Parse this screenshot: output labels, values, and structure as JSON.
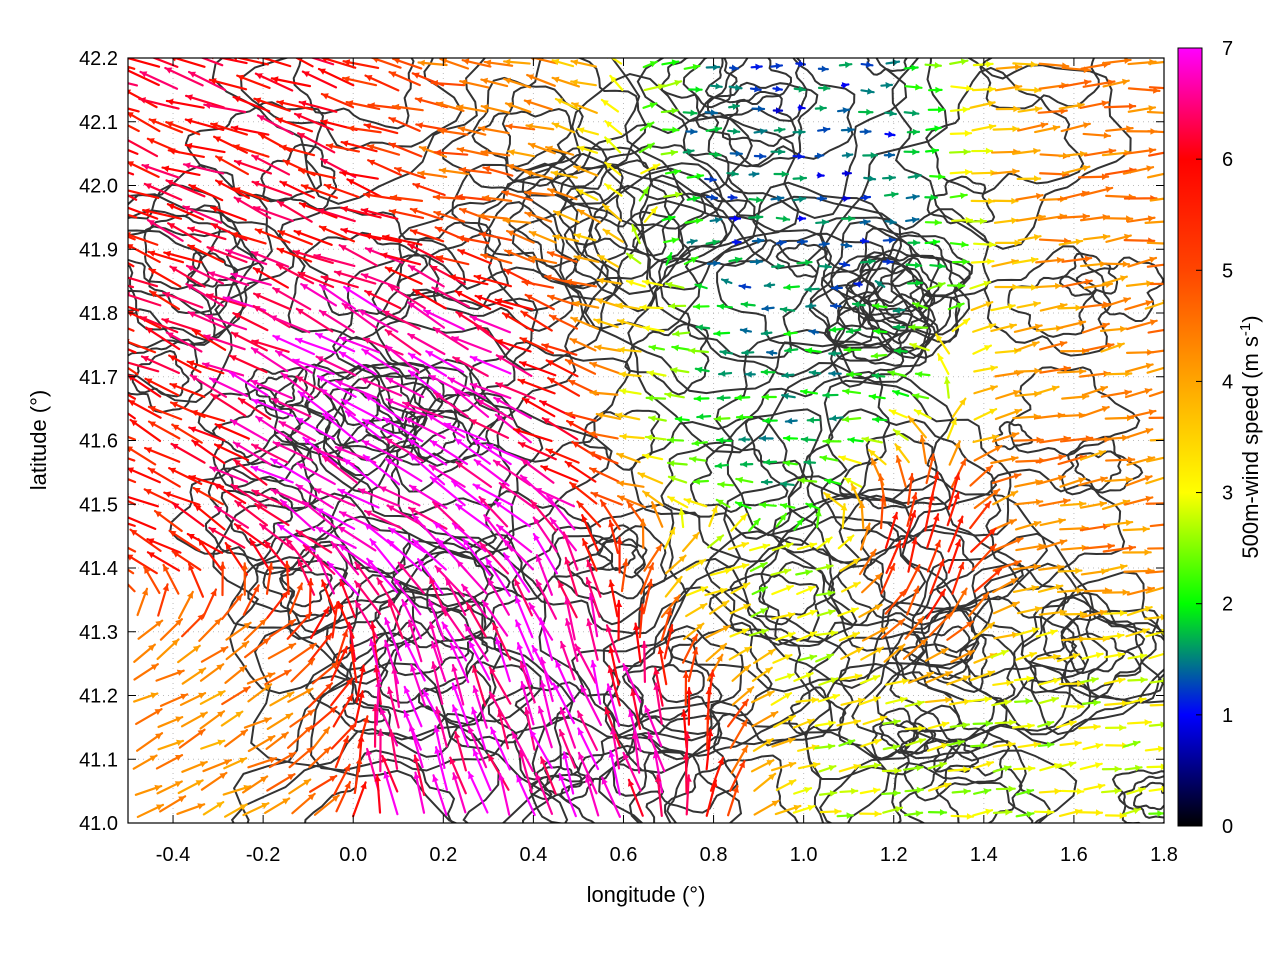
{
  "chart_data": {
    "type": "vector-field",
    "xlabel": "longitude (°)",
    "ylabel": "latitude (°)",
    "colorbar_label": "500m-wind speed (m s-1)",
    "colorbar_label_parts": {
      "main": "500m-wind speed (m s",
      "sup": "-1",
      "end": ")"
    },
    "xlim": [
      -0.5,
      1.8
    ],
    "ylim": [
      41.0,
      42.2
    ],
    "xticks": [
      -0.4,
      -0.2,
      0.0,
      0.2,
      0.4,
      0.6,
      0.8,
      1.0,
      1.2,
      1.4,
      1.6,
      1.8
    ],
    "xtick_labels": [
      "-0.4",
      "-0.2",
      "0.0",
      "0.2",
      "0.4",
      "0.6",
      "0.8",
      "1.0",
      "1.2",
      "1.4",
      "1.6",
      "1.8"
    ],
    "yticks": [
      41.0,
      41.1,
      41.2,
      41.3,
      41.4,
      41.5,
      41.6,
      41.7,
      41.8,
      41.9,
      42.0,
      42.1,
      42.2
    ],
    "ytick_labels": [
      "41.0",
      "41.1",
      "41.2",
      "41.3",
      "41.4",
      "41.5",
      "41.6",
      "41.7",
      "41.8",
      "41.9",
      "42.0",
      "42.1",
      "42.2"
    ],
    "colorbar_range": [
      0,
      7
    ],
    "colorbar_ticks": [
      0,
      1,
      2,
      3,
      4,
      5,
      6,
      7
    ],
    "colorbar_tick_labels": [
      "0",
      "1",
      "2",
      "3",
      "4",
      "5",
      "6",
      "7"
    ],
    "colormap": [
      {
        "value": 0,
        "color": "#000000"
      },
      {
        "value": 1,
        "color": "#0000ff"
      },
      {
        "value": 2,
        "color": "#00ff00"
      },
      {
        "value": 3,
        "color": "#ffff00"
      },
      {
        "value": 4,
        "color": "#ffa500"
      },
      {
        "value": 5,
        "color": "#ff4500"
      },
      {
        "value": 6,
        "color": "#ff0000"
      },
      {
        "value": 7,
        "color": "#ff00ff"
      }
    ],
    "contour_color": "#333333",
    "grid": "dotted",
    "regions": [
      {
        "lon": [
          -0.5,
          0.1
        ],
        "lat": [
          41.75,
          42.2
        ],
        "speed": 6.0,
        "direction_deg": 160
      },
      {
        "lon": [
          -0.3,
          0.55
        ],
        "lat": [
          41.35,
          41.9
        ],
        "speed": 7.0,
        "direction_deg": 150
      },
      {
        "lon": [
          0.0,
          0.75
        ],
        "lat": [
          41.0,
          41.4
        ],
        "speed": 6.8,
        "direction_deg": 110
      },
      {
        "lon": [
          0.1,
          0.65
        ],
        "lat": [
          41.85,
          42.2
        ],
        "speed": 4.5,
        "direction_deg": 170
      },
      {
        "lon": [
          0.55,
          1.35
        ],
        "lat": [
          41.85,
          42.2
        ],
        "speed": 1.2,
        "direction_deg": 0
      },
      {
        "lon": [
          0.6,
          1.3
        ],
        "lat": [
          41.5,
          41.85
        ],
        "speed": 1.8,
        "direction_deg": 180
      },
      {
        "lon": [
          1.35,
          1.8
        ],
        "lat": [
          41.35,
          41.85
        ],
        "speed": 4.3,
        "direction_deg": 10
      },
      {
        "lon": [
          1.35,
          1.8
        ],
        "lat": [
          41.9,
          42.2
        ],
        "speed": 4.5,
        "direction_deg": 5
      },
      {
        "lon": [
          0.95,
          1.8
        ],
        "lat": [
          41.0,
          41.3
        ],
        "speed": 2.8,
        "direction_deg": 8
      },
      {
        "lon": [
          0.65,
          1.1
        ],
        "lat": [
          41.25,
          41.45
        ],
        "speed": 2.6,
        "direction_deg": 15
      },
      {
        "lon": [
          -0.5,
          -0.05
        ],
        "lat": [
          41.0,
          41.35
        ],
        "speed": 4.2,
        "direction_deg": 25
      },
      {
        "lon": [
          -0.5,
          -0.25
        ],
        "lat": [
          41.35,
          41.75
        ],
        "speed": 5.5,
        "direction_deg": 155
      },
      {
        "lon": [
          1.15,
          1.35
        ],
        "lat": [
          41.25,
          41.55
        ],
        "speed": 6.2,
        "direction_deg": 80
      }
    ]
  }
}
